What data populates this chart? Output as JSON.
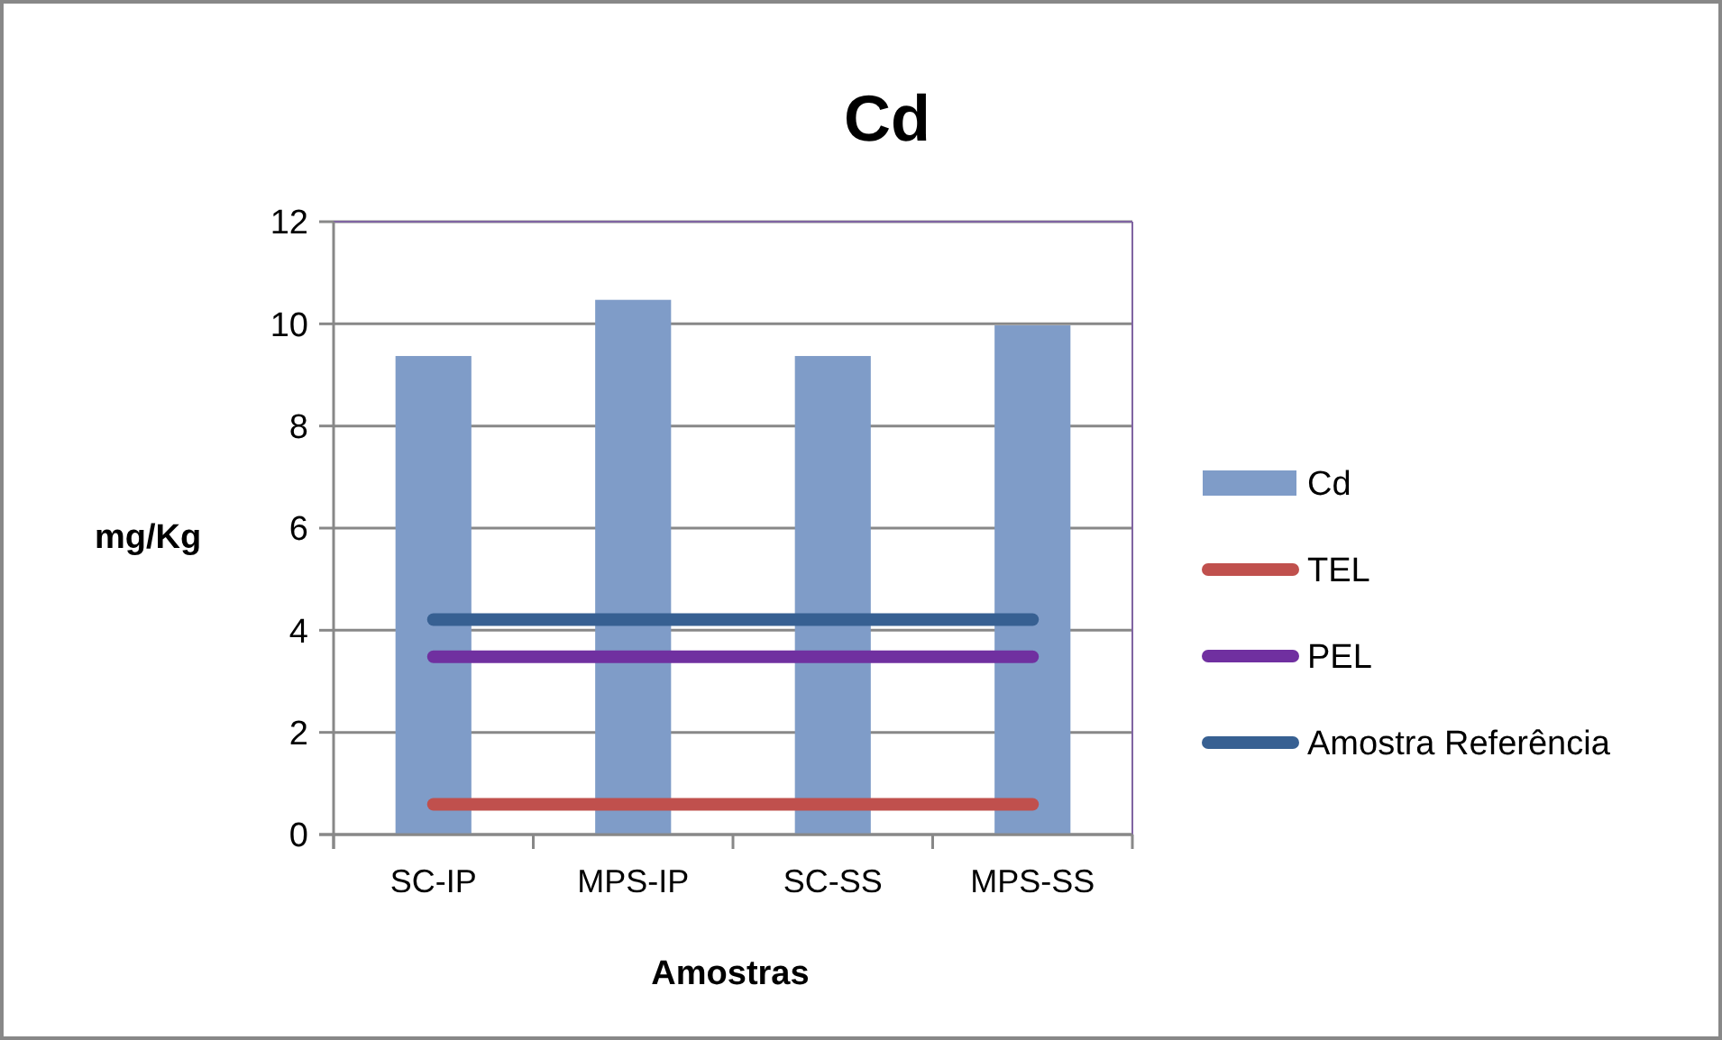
{
  "chart_data": {
    "type": "bar",
    "title": "Cd",
    "xlabel": "Amostras",
    "ylabel": "mg/Kg",
    "categories": [
      "SC-IP",
      "MPS-IP",
      "SC-SS",
      "MPS-SS"
    ],
    "series": [
      {
        "name": "Cd",
        "color": "#7f9cc8",
        "values": [
          9.37,
          10.47,
          9.37,
          9.97
        ]
      },
      {
        "name": "TEL",
        "type": "line",
        "color": "#c0504d",
        "values": [
          0.59,
          0.59,
          0.59,
          0.59
        ]
      },
      {
        "name": "PEL",
        "type": "line",
        "color": "#7030a0",
        "values": [
          3.48,
          3.48,
          3.48,
          3.48
        ]
      },
      {
        "name": "Amostra Referência",
        "type": "line",
        "color": "#376092",
        "values": [
          4.21,
          4.21,
          4.21,
          4.21
        ]
      }
    ],
    "ylim": [
      0,
      12
    ],
    "yticks": [
      0,
      2,
      4,
      6,
      8,
      10,
      12
    ],
    "grid": "y",
    "legend": "right",
    "marker": "none",
    "line_style": "solid"
  }
}
